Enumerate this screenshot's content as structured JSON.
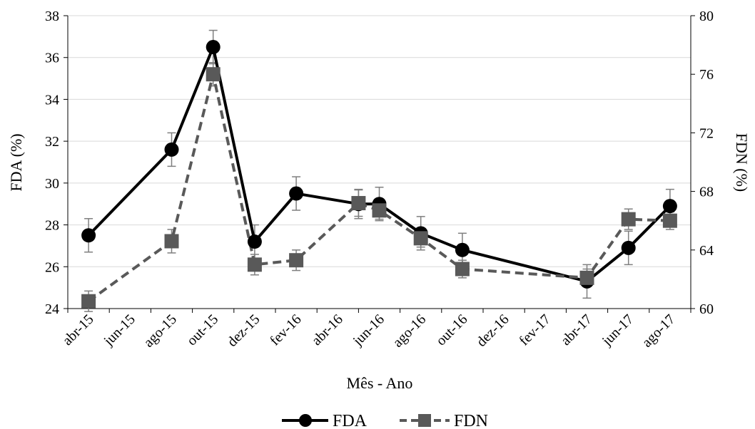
{
  "chart_data": {
    "type": "line",
    "x_tick_labels": [
      "abr-15",
      "jun-15",
      "ago-15",
      "out-15",
      "dez-15",
      "fev-16",
      "abr-16",
      "jun-16",
      "ago-16",
      "out-16",
      "dez-16",
      "fev-17",
      "abr-17",
      "jun-17",
      "ago-17"
    ],
    "xlabel": "Mês - Ano",
    "ylabel_left": "FDA (%)",
    "ylabel_right": "FDN (%)",
    "ylim_left": [
      24,
      38
    ],
    "yticks_left": [
      "24",
      "26",
      "28",
      "30",
      "32",
      "34",
      "36",
      "38"
    ],
    "ylim_right": [
      60,
      80
    ],
    "yticks_right": [
      "60",
      "64",
      "68",
      "72",
      "76",
      "80"
    ],
    "grid": "horizontal",
    "legend_position": "bottom",
    "series": [
      {
        "name": "FDA",
        "axis": "left",
        "color": "#000000",
        "marker": "circle",
        "line_style": "solid",
        "x": [
          "abr-15",
          "ago-15",
          "out-15",
          "dez-15",
          "fev-16",
          "mai-16",
          "jun-16",
          "ago-16",
          "out-16",
          "abr-17",
          "jun-17",
          "ago-17"
        ],
        "values": [
          27.5,
          31.6,
          36.5,
          27.2,
          29.5,
          29.0,
          29.0,
          27.6,
          26.8,
          25.3,
          26.9,
          28.9
        ],
        "errors": [
          0.8,
          0.8,
          0.8,
          0.8,
          0.8,
          0.7,
          0.8,
          0.8,
          0.8,
          0.8,
          0.8,
          0.8
        ]
      },
      {
        "name": "FDN",
        "axis": "right",
        "color": "#595959",
        "marker": "square",
        "line_style": "dashed",
        "x": [
          "abr-15",
          "ago-15",
          "out-15",
          "dez-15",
          "fev-16",
          "mai-16",
          "jun-16",
          "ago-16",
          "out-16",
          "abr-17",
          "jun-17",
          "ago-17"
        ],
        "values": [
          60.5,
          64.6,
          76.0,
          63.0,
          63.3,
          67.2,
          66.7,
          64.8,
          62.7,
          62.1,
          66.1,
          66.0
        ],
        "errors": [
          0.7,
          0.8,
          0.8,
          0.7,
          0.7,
          0.9,
          0.6,
          0.6,
          0.6,
          0.6,
          0.7,
          0.6
        ]
      }
    ]
  }
}
